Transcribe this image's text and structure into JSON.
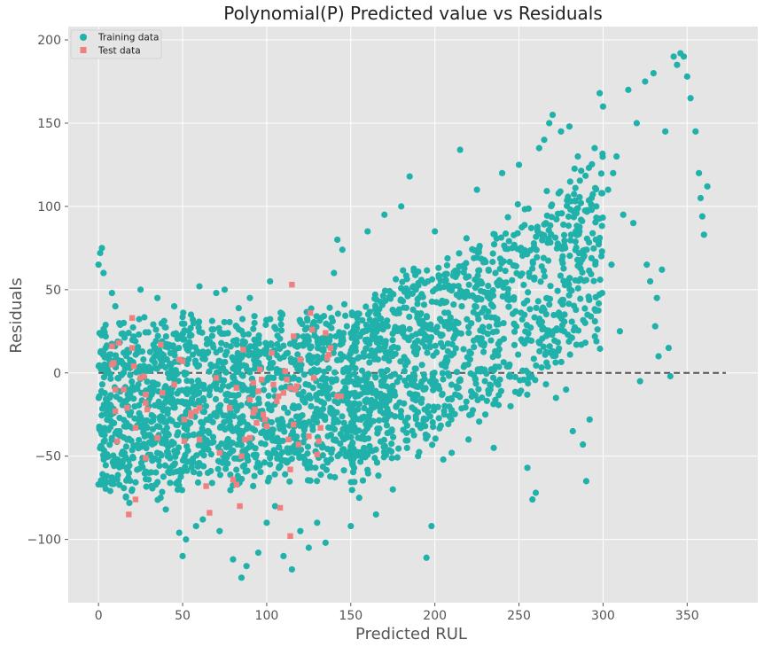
{
  "chart_data": {
    "type": "scatter",
    "title": "Polynomial(P) Predicted value vs Residuals",
    "xlabel": "Predicted RUL",
    "ylabel": "Residuals",
    "xlim": [
      -18,
      392
    ],
    "ylim": [
      -138,
      208
    ],
    "xticks": [
      0,
      50,
      100,
      150,
      200,
      250,
      300,
      350
    ],
    "yticks": [
      -100,
      -50,
      0,
      50,
      100,
      150,
      200
    ],
    "grid": true,
    "legend_position": "top-left",
    "reference_line": {
      "y": 0,
      "x_range": [
        0,
        373
      ],
      "style": "dashed",
      "color": "#555555"
    },
    "colors": {
      "training": "#20b2aa",
      "test": "#f08080",
      "background": "#e5e5e5"
    },
    "series": [
      {
        "name": "Training data",
        "marker": "circle",
        "color": "#20b2aa",
        "points": [
          [
            0,
            -67
          ],
          [
            2,
            75
          ],
          [
            1,
            72
          ],
          [
            0,
            65
          ],
          [
            3,
            60
          ],
          [
            2,
            -45
          ],
          [
            5,
            -62
          ],
          [
            8,
            48
          ],
          [
            10,
            40
          ],
          [
            12,
            -55
          ],
          [
            15,
            30
          ],
          [
            20,
            -70
          ],
          [
            25,
            50
          ],
          [
            30,
            -60
          ],
          [
            35,
            45
          ],
          [
            40,
            -82
          ],
          [
            45,
            40
          ],
          [
            48,
            -96
          ],
          [
            50,
            -110
          ],
          [
            52,
            -100
          ],
          [
            55,
            35
          ],
          [
            58,
            -92
          ],
          [
            60,
            52
          ],
          [
            62,
            -88
          ],
          [
            65,
            -60
          ],
          [
            70,
            48
          ],
          [
            72,
            -95
          ],
          [
            75,
            50
          ],
          [
            80,
            -112
          ],
          [
            85,
            -123
          ],
          [
            88,
            -116
          ],
          [
            90,
            45
          ],
          [
            95,
            -108
          ],
          [
            100,
            -90
          ],
          [
            102,
            55
          ],
          [
            105,
            -80
          ],
          [
            110,
            -110
          ],
          [
            115,
            -118
          ],
          [
            120,
            -95
          ],
          [
            125,
            -105
          ],
          [
            130,
            -90
          ],
          [
            135,
            -102
          ],
          [
            140,
            60
          ],
          [
            142,
            80
          ],
          [
            145,
            74
          ],
          [
            150,
            -92
          ],
          [
            155,
            -75
          ],
          [
            160,
            85
          ],
          [
            165,
            -85
          ],
          [
            170,
            95
          ],
          [
            175,
            -70
          ],
          [
            180,
            100
          ],
          [
            185,
            118
          ],
          [
            190,
            -50
          ],
          [
            195,
            -111
          ],
          [
            198,
            -92
          ],
          [
            200,
            85
          ],
          [
            205,
            -52
          ],
          [
            210,
            -48
          ],
          [
            215,
            134
          ],
          [
            220,
            -40
          ],
          [
            225,
            110
          ],
          [
            230,
            -25
          ],
          [
            235,
            -45
          ],
          [
            240,
            120
          ],
          [
            245,
            -20
          ],
          [
            250,
            125
          ],
          [
            255,
            -57
          ],
          [
            258,
            -76
          ],
          [
            260,
            -72
          ],
          [
            262,
            135
          ],
          [
            265,
            140
          ],
          [
            268,
            150
          ],
          [
            270,
            155
          ],
          [
            272,
            -15
          ],
          [
            275,
            145
          ],
          [
            278,
            -10
          ],
          [
            280,
            148
          ],
          [
            282,
            -35
          ],
          [
            285,
            130
          ],
          [
            288,
            -43
          ],
          [
            290,
            -65
          ],
          [
            292,
            -28
          ],
          [
            295,
            135
          ],
          [
            298,
            168
          ],
          [
            300,
            160
          ],
          [
            303,
            110
          ],
          [
            305,
            65
          ],
          [
            308,
            130
          ],
          [
            310,
            25
          ],
          [
            315,
            170
          ],
          [
            320,
            150
          ],
          [
            322,
            -5
          ],
          [
            325,
            175
          ],
          [
            328,
            55
          ],
          [
            330,
            180
          ],
          [
            332,
            45
          ],
          [
            335,
            62
          ],
          [
            337,
            145
          ],
          [
            339,
            15
          ],
          [
            340,
            -2
          ],
          [
            342,
            190
          ],
          [
            344,
            185
          ],
          [
            346,
            192
          ],
          [
            348,
            190
          ],
          [
            350,
            178
          ],
          [
            352,
            165
          ],
          [
            355,
            145
          ],
          [
            357,
            120
          ],
          [
            358,
            105
          ],
          [
            359,
            94
          ],
          [
            360,
            83
          ],
          [
            362,
            112
          ],
          [
            331,
            28
          ],
          [
            333,
            10
          ],
          [
            326,
            65
          ],
          [
            318,
            90
          ],
          [
            312,
            95
          ],
          [
            306,
            120
          ],
          [
            296,
            100
          ],
          [
            286,
            85
          ],
          [
            276,
            70
          ],
          [
            266,
            90
          ],
          [
            256,
            60
          ],
          [
            246,
            75
          ],
          [
            236,
            60
          ],
          [
            226,
            55
          ],
          [
            216,
            40
          ],
          [
            206,
            30
          ],
          [
            196,
            20
          ]
        ]
      },
      {
        "name": "Test data",
        "marker": "square",
        "color": "#f08080",
        "points": [
          [
            8,
            16
          ],
          [
            8,
            5
          ],
          [
            9,
            6
          ],
          [
            10,
            -10
          ],
          [
            10,
            -23
          ],
          [
            11,
            -41
          ],
          [
            12,
            18
          ],
          [
            15,
            -10
          ],
          [
            17,
            -21
          ],
          [
            18,
            -85
          ],
          [
            20,
            33
          ],
          [
            20,
            15
          ],
          [
            21,
            4
          ],
          [
            22,
            -33
          ],
          [
            22,
            -76
          ],
          [
            25,
            -3
          ],
          [
            27,
            -2
          ],
          [
            28,
            -13
          ],
          [
            28,
            -18
          ],
          [
            29,
            -22
          ],
          [
            28,
            -51
          ],
          [
            35,
            -39
          ],
          [
            37,
            17
          ],
          [
            38,
            -12
          ],
          [
            45,
            -7
          ],
          [
            48,
            8
          ],
          [
            50,
            7
          ],
          [
            51,
            -28
          ],
          [
            51,
            -41
          ],
          [
            55,
            -24
          ],
          [
            55,
            -26
          ],
          [
            58,
            -23
          ],
          [
            60,
            -21
          ],
          [
            60,
            -40
          ],
          [
            64,
            -68
          ],
          [
            66,
            -84
          ],
          [
            70,
            -3
          ],
          [
            72,
            -48
          ],
          [
            78,
            -21
          ],
          [
            80,
            -64
          ],
          [
            82,
            -9
          ],
          [
            82,
            -67
          ],
          [
            84,
            -80
          ],
          [
            85,
            -50
          ],
          [
            86,
            14
          ],
          [
            87,
            -40
          ],
          [
            90,
            -16
          ],
          [
            90,
            -39
          ],
          [
            92,
            -6
          ],
          [
            92,
            -24
          ],
          [
            93,
            -22
          ],
          [
            94,
            -30
          ],
          [
            95,
            -11
          ],
          [
            96,
            2
          ],
          [
            97,
            -4
          ],
          [
            98,
            -25
          ],
          [
            99,
            -28
          ],
          [
            100,
            -32
          ],
          [
            103,
            12
          ],
          [
            104,
            -7
          ],
          [
            106,
            -17
          ],
          [
            107,
            -14
          ],
          [
            108,
            -81
          ],
          [
            110,
            -12
          ],
          [
            111,
            1
          ],
          [
            112,
            -4
          ],
          [
            113,
            -40
          ],
          [
            114,
            -9
          ],
          [
            114,
            -58
          ],
          [
            115,
            53
          ],
          [
            116,
            22
          ],
          [
            116,
            -31
          ],
          [
            117,
            -10
          ],
          [
            118,
            -8
          ],
          [
            119,
            -43
          ],
          [
            120,
            8
          ],
          [
            125,
            -38
          ],
          [
            126,
            36
          ],
          [
            127,
            26
          ],
          [
            128,
            -3
          ],
          [
            130,
            -49
          ],
          [
            131,
            -41
          ],
          [
            132,
            -33
          ],
          [
            135,
            24
          ],
          [
            136,
            9
          ],
          [
            137,
            11
          ],
          [
            138,
            15
          ],
          [
            142,
            -14
          ],
          [
            144,
            -14
          ],
          [
            114,
            -98
          ]
        ]
      }
    ]
  }
}
